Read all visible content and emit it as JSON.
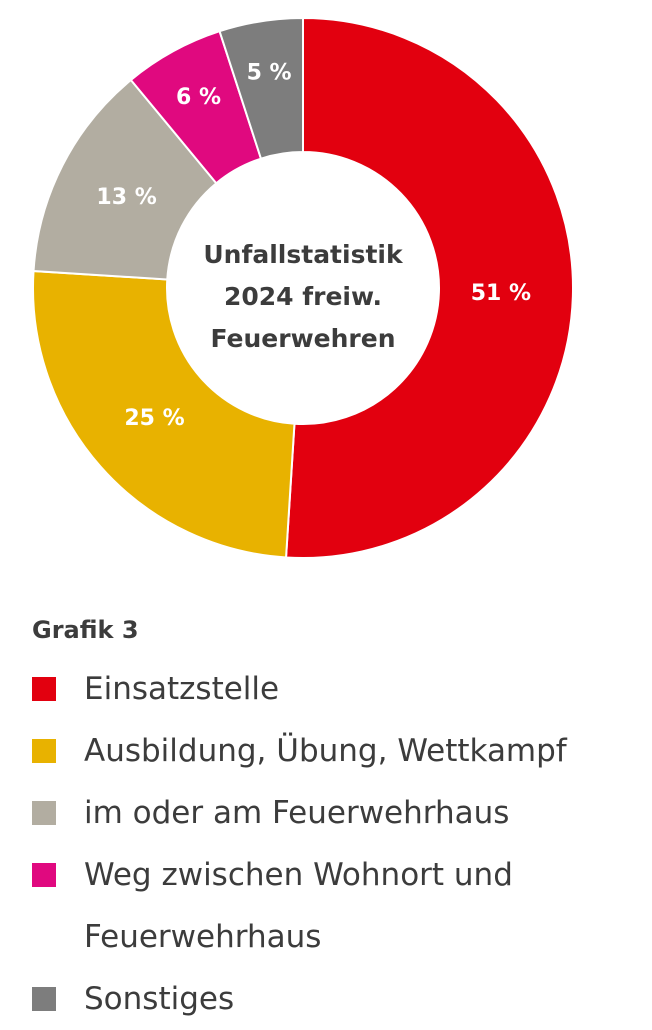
{
  "chart_data": {
    "type": "pie",
    "variant": "donut",
    "title": "Unfallstatistik 2024 freiw. Feuerwehren",
    "center_title_lines": [
      "Unfallstatistik",
      "2024 freiw.",
      "Feuerwehren"
    ],
    "caption": "Grafik 3",
    "unit": "%",
    "categories": [
      "Einsatzstelle",
      "Ausbildung, Übung, Wettkampf",
      "im oder am Feuerwehrhaus",
      "Weg zwischen Wohnort und Feuerwehrhaus",
      "Sonstiges"
    ],
    "values": [
      51,
      25,
      13,
      6,
      5
    ],
    "value_labels": [
      "51 %",
      "25 %",
      "13 %",
      "6 %",
      "5 %"
    ],
    "colors": [
      "#e2000f",
      "#e8b200",
      "#b2ada1",
      "#e0097f",
      "#7d7d7d"
    ],
    "legend_position": "bottom",
    "start_angle": "top",
    "direction": "clockwise"
  },
  "legend": {
    "title": "Grafik 3",
    "items": [
      {
        "label": "Einsatzstelle",
        "color": "#e2000f"
      },
      {
        "label": "Ausbildung, Übung, Wettkampf",
        "color": "#e8b200"
      },
      {
        "label": "im oder am Feuerwehrhaus",
        "color": "#b2ada1"
      },
      {
        "label": "Weg zwischen Wohnort und Feuerwehrhaus",
        "color": "#e0097f"
      },
      {
        "label": "Sonstiges",
        "color": "#7d7d7d"
      }
    ]
  }
}
